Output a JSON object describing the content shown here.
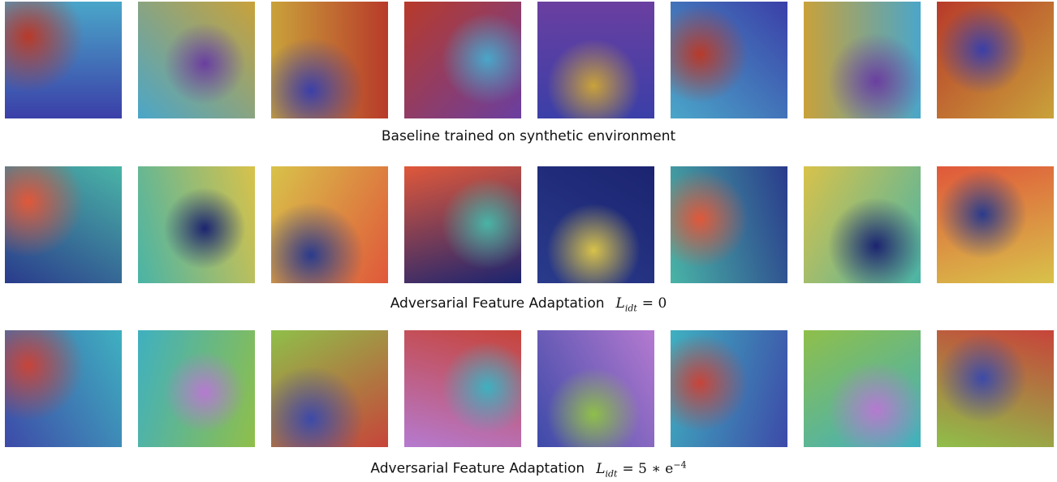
{
  "rows": [
    {
      "caption": "Baseline trained on synthetic environment"
    },
    {
      "caption": "Adversarial Feature Adaptation",
      "formula": {
        "symbol": "L",
        "subscript": "idt",
        "rhs": "= 0"
      }
    },
    {
      "caption": "Adversarial Feature Adaptation",
      "formula": {
        "symbol": "L",
        "subscript": "idt",
        "rhs": "= 5 ∗ e",
        "superscript": "−4"
      }
    }
  ]
}
